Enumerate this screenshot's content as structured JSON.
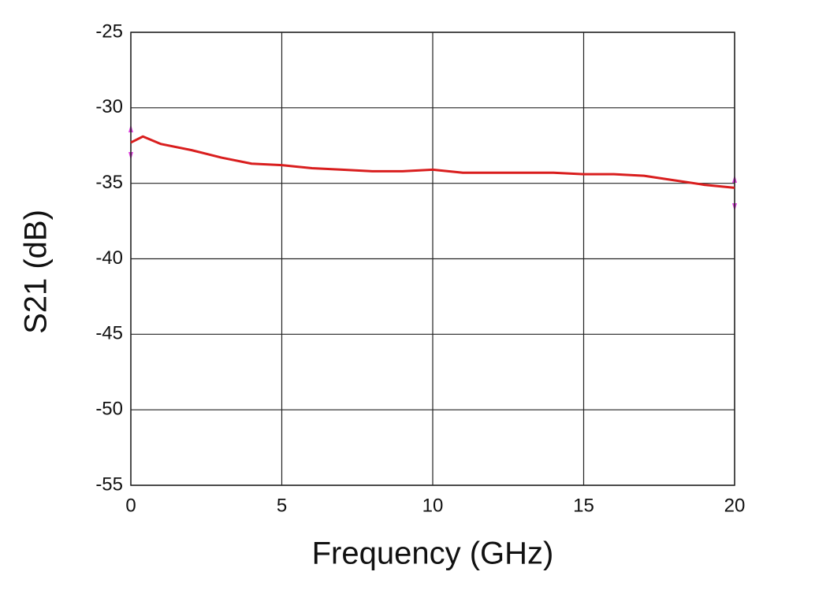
{
  "chart_data": {
    "type": "line",
    "xlabel": "Frequency (GHz)",
    "ylabel": "S21 (dB)",
    "x": [
      0,
      0.4,
      1,
      2,
      3,
      4,
      5,
      6,
      7,
      8,
      9,
      10,
      11,
      12,
      13,
      14,
      15,
      16,
      17,
      18,
      19,
      20
    ],
    "series": [
      {
        "color": "#d91e1e",
        "values": [
          -32.3,
          -31.9,
          -32.4,
          -32.8,
          -33.3,
          -33.7,
          -33.8,
          -34.0,
          -34.1,
          -34.2,
          -34.2,
          -34.1,
          -34.3,
          -34.3,
          -34.3,
          -34.3,
          -34.4,
          -34.4,
          -34.5,
          -34.8,
          -35.1,
          -35.3
        ]
      }
    ],
    "xlim": [
      0,
      20
    ],
    "xticks": [
      0,
      5,
      10,
      15,
      20
    ],
    "ylim": [
      -55,
      -25
    ],
    "yticks": [
      -55,
      -50,
      -45,
      -40,
      -35,
      -30,
      -25
    ],
    "grid": true
  }
}
